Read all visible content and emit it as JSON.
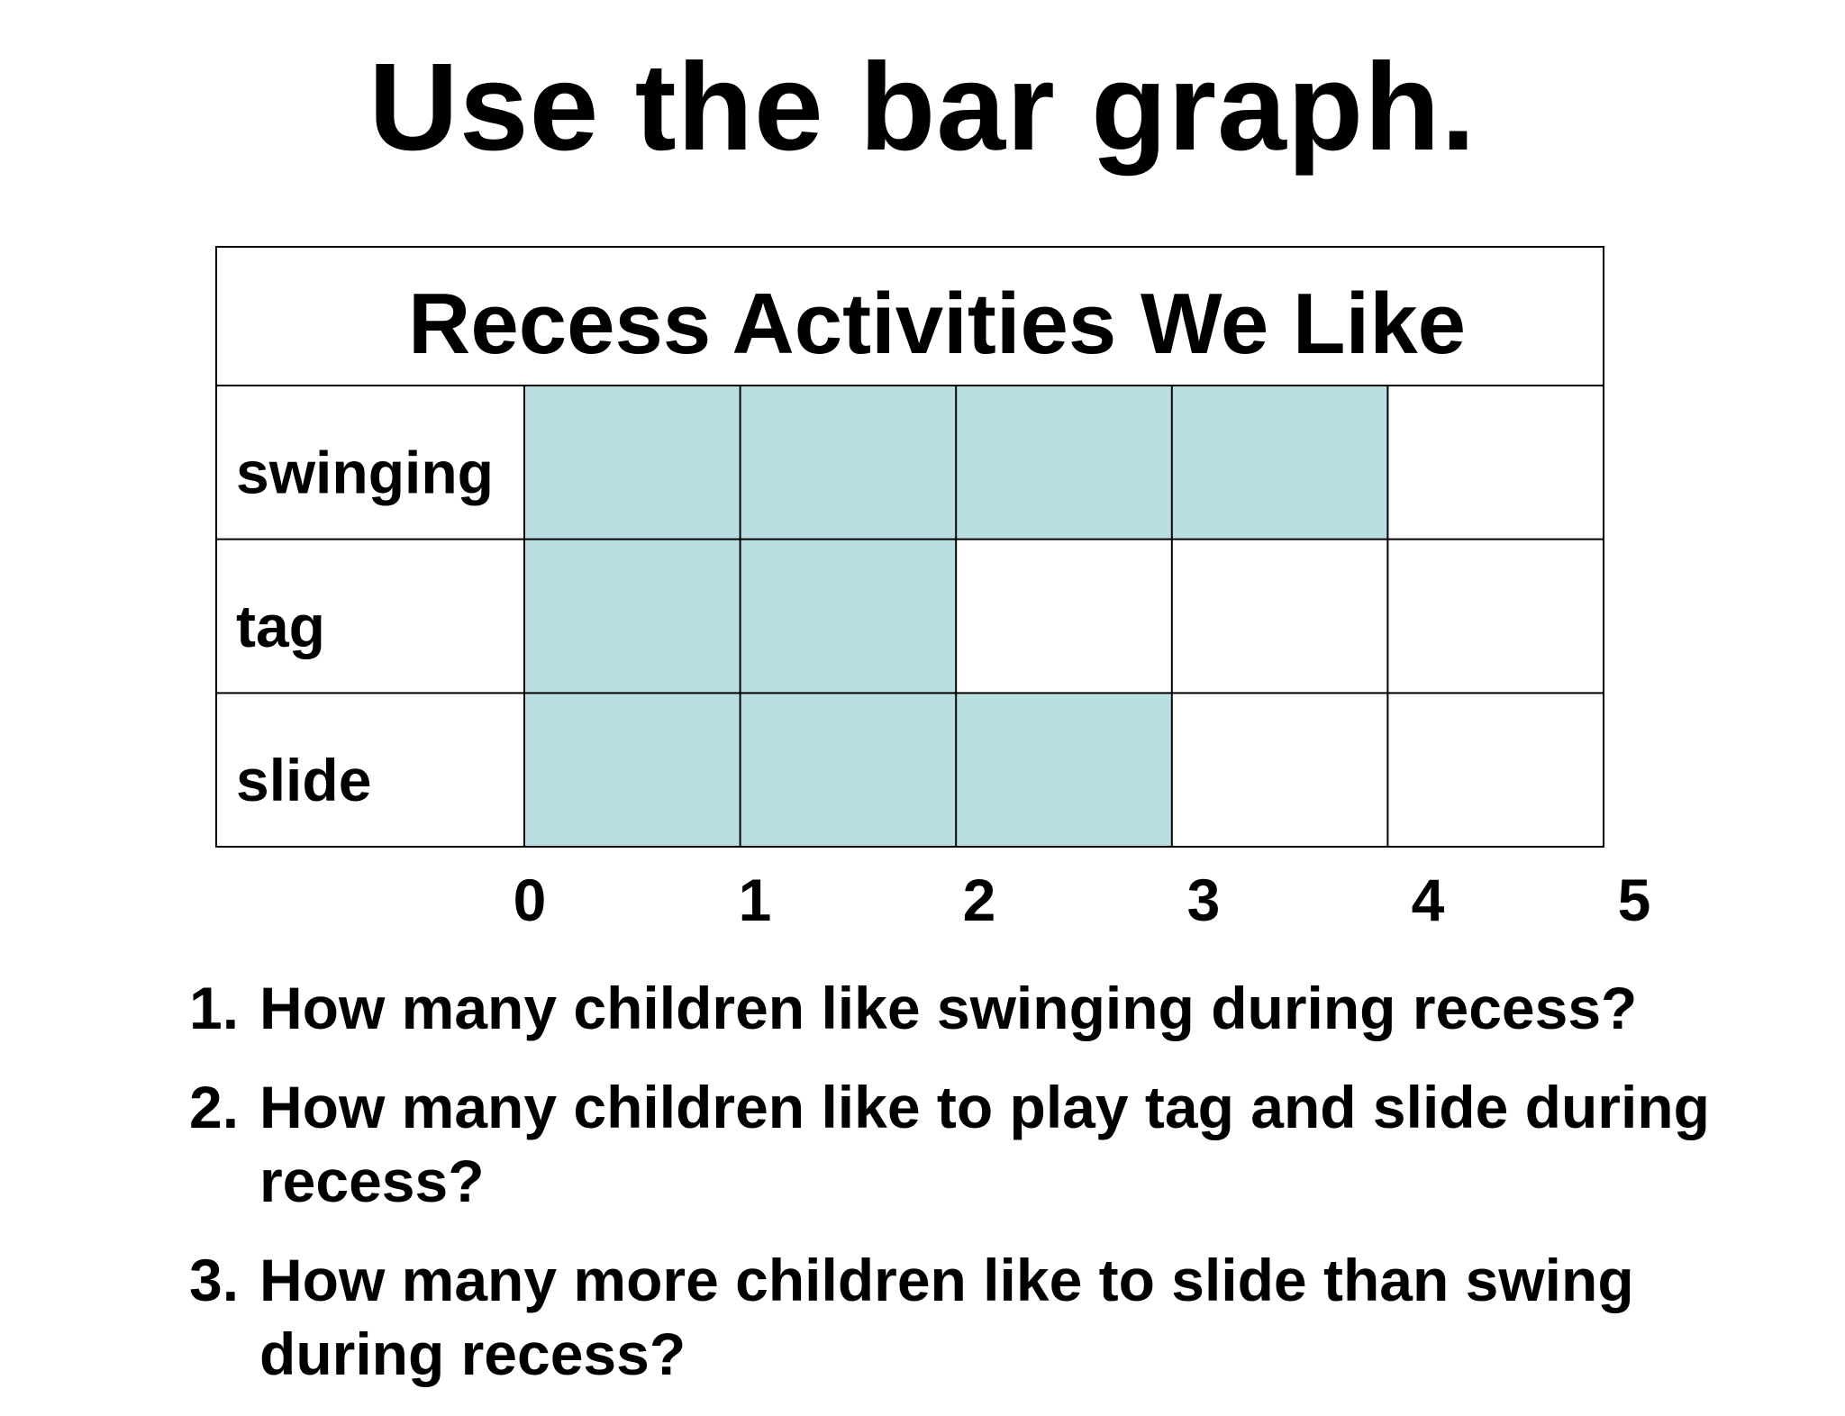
{
  "slide": {
    "title": "Use the bar graph."
  },
  "chart_data": {
    "type": "bar",
    "orientation": "horizontal",
    "title": "Recess Activities We Like",
    "categories": [
      "swinging",
      "tag",
      "slide"
    ],
    "values": [
      4,
      2,
      3
    ],
    "xlim": [
      0,
      5
    ],
    "ticks": [
      "0",
      "1",
      "2",
      "3",
      "4",
      "5"
    ],
    "grid": true,
    "colors": {
      "bar_fill": "#b9dfe2",
      "empty_fill": "#ffffff",
      "grid_line": "#000000"
    }
  },
  "questions": [
    {
      "number": "1.",
      "text": "How many children like swinging during recess?"
    },
    {
      "number": "2.",
      "text": "How many children like to play tag and slide during recess?"
    },
    {
      "number": "3.",
      "text": "How many more children like to slide than swing during recess?"
    }
  ]
}
